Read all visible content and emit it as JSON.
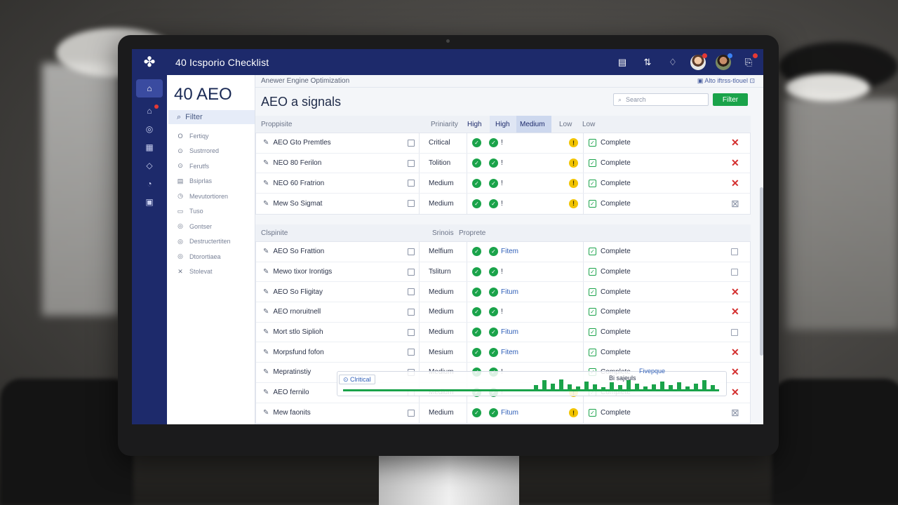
{
  "topbar": {
    "title": "40 Icsporio Checklist",
    "icons": [
      "list-icon",
      "sort-icon",
      "bell-icon",
      "inbox-icon"
    ]
  },
  "rail": {
    "items": [
      "home-icon",
      "notifications-icon",
      "target-icon",
      "calendar-icon",
      "tag-icon",
      "analytics-icon",
      "media-icon"
    ]
  },
  "sidebar": {
    "title": "40 AEO",
    "filter_label": "Filter",
    "items": [
      {
        "label": "Fertiqy",
        "icon": "O"
      },
      {
        "label": "Sustrrored",
        "icon": "⊙"
      },
      {
        "label": "Ferutfs",
        "icon": "⊙"
      },
      {
        "label": "Bsiprlas",
        "icon": "▤"
      },
      {
        "label": "Mevutortioren",
        "icon": "◷"
      },
      {
        "label": "Tuso",
        "icon": "▭"
      },
      {
        "label": "Gontser",
        "icon": "◎"
      },
      {
        "label": "Destructertiten",
        "icon": "◎"
      },
      {
        "label": "Dtorortiaea",
        "icon": "◎"
      },
      {
        "label": "Stolevat",
        "icon": "✕"
      }
    ]
  },
  "main": {
    "breadcrumb": "Anewer Engine Optimization",
    "breadcrumb_right": "Alto iftrss-tlouel",
    "heading": "AEO a signals",
    "search_placeholder": "Search",
    "filter_button": "Filter"
  },
  "section1": {
    "col1": "Proppisite",
    "col2": "Priniarity",
    "priority_tabs": [
      "High",
      "High",
      "Medium",
      "Low",
      "Low"
    ]
  },
  "table1": [
    {
      "name": "AEO Gto Premtles",
      "priority": "Critical",
      "status": "!",
      "warn": true,
      "complete": "Complete",
      "action": "x"
    },
    {
      "name": "NEO 80 Ferilon",
      "priority": "Tolition",
      "status": "!",
      "warn": true,
      "complete": "Complete",
      "action": "x"
    },
    {
      "name": "NEO 60 Fratrion",
      "priority": "Medium",
      "status": "!",
      "warn": true,
      "complete": "Complete",
      "action": "x"
    },
    {
      "name": "Mew So Sigmat",
      "priority": "Medium",
      "status": "!",
      "warn": true,
      "complete": "Complete",
      "action": "muted"
    }
  ],
  "section2": {
    "col1": "Clspinite",
    "col2": "Srinois",
    "col3": "Proprete"
  },
  "table2": [
    {
      "name": "AEO So Frattion",
      "priority": "Melfium",
      "status": "Fitem",
      "warn": false,
      "complete": "Complete",
      "action": "box"
    },
    {
      "name": "Mewo tixor Irontigs",
      "priority": "Tsliturn",
      "status": "!",
      "warn": false,
      "complete": "Complete",
      "action": "box"
    },
    {
      "name": "AEO So Fligitay",
      "priority": "Medium",
      "status": "Fitum",
      "warn": false,
      "complete": "Complete",
      "action": "x"
    },
    {
      "name": "AEO rnoruitnell",
      "priority": "Medium",
      "status": "!",
      "warn": false,
      "complete": "Complete",
      "action": "x"
    },
    {
      "name": "Mort stlo Siplioh",
      "priority": "Medium",
      "status": "Fitum",
      "warn": false,
      "complete": "Complete",
      "action": "box"
    },
    {
      "name": "Morpsfund fofon",
      "priority": "Mesium",
      "status": "Fitem",
      "warn": false,
      "complete": "Complete",
      "action": "x"
    },
    {
      "name": "Mepratinstiy",
      "priority": "Medium",
      "status": "!",
      "warn": false,
      "complete": "Complete",
      "action": "x"
    },
    {
      "name": "AEO fernilo",
      "priority": "Medium",
      "status": "!",
      "warn": true,
      "complete": "Complete",
      "action": "x"
    },
    {
      "name": "Mew faonits",
      "priority": "Medium",
      "status": "Fitum",
      "warn": true,
      "complete": "Complete",
      "action": "muted"
    }
  ],
  "overlay": {
    "tag": "Clritical",
    "label": "Bi sajeuls",
    "label2": "Fivepque",
    "bars": [
      0.4,
      0.9,
      0.6,
      1.0,
      0.5,
      0.3,
      0.8,
      0.5,
      0.2,
      0.7,
      0.4,
      0.9,
      0.6,
      0.3,
      0.5,
      0.8,
      0.4,
      0.7,
      0.3,
      0.6,
      0.9,
      0.4
    ]
  },
  "colors": {
    "navy": "#1d2a6b",
    "green": "#1aa34a",
    "yellow": "#f2c400",
    "red": "#d32f2f"
  }
}
